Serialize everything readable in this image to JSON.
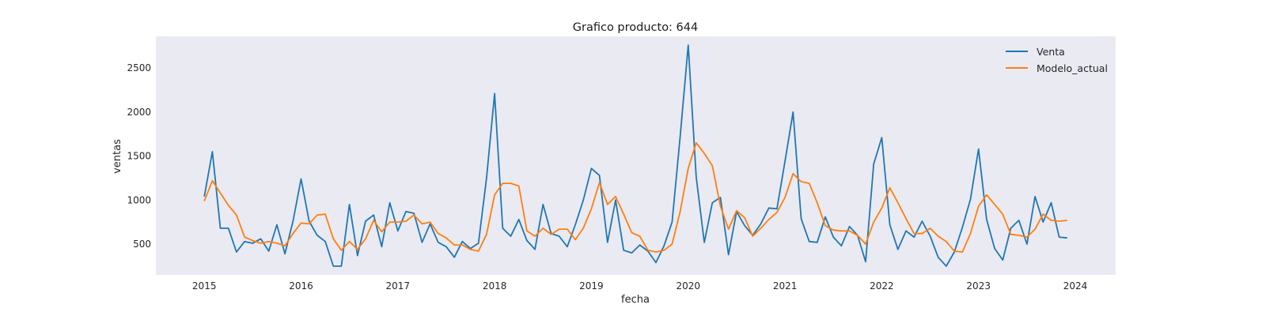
{
  "chart_data": {
    "type": "line",
    "title": "Grafico producto: 644",
    "xlabel": "fecha",
    "ylabel": "ventas",
    "x_start": "2015-01",
    "x_frequency": "monthly",
    "xlim": [
      "2014-07",
      "2024-06"
    ],
    "ylim": [
      150,
      2860
    ],
    "xticks": [
      "2015",
      "2016",
      "2017",
      "2018",
      "2019",
      "2020",
      "2021",
      "2022",
      "2023",
      "2024"
    ],
    "yticks": [
      500,
      1000,
      1500,
      2000,
      2500
    ],
    "grid": false,
    "background": "#eaeaf2",
    "legend": {
      "placement": "top-right",
      "entries": [
        "Venta",
        "Modelo_actual"
      ]
    },
    "series": [
      {
        "name": "Venta",
        "color": "#1f77b4",
        "values": [
          1040,
          1550,
          680,
          680,
          410,
          530,
          510,
          560,
          420,
          720,
          390,
          760,
          1240,
          760,
          600,
          530,
          250,
          250,
          950,
          370,
          760,
          830,
          470,
          970,
          650,
          870,
          850,
          520,
          730,
          520,
          470,
          350,
          530,
          450,
          510,
          1250,
          2210,
          680,
          590,
          780,
          540,
          440,
          950,
          620,
          590,
          470,
          720,
          1000,
          1360,
          1280,
          520,
          1000,
          430,
          400,
          490,
          420,
          290,
          480,
          750,
          1720,
          2760,
          1260,
          520,
          970,
          1030,
          380,
          870,
          710,
          600,
          730,
          910,
          900,
          1440,
          2000,
          790,
          530,
          520,
          810,
          580,
          480,
          700,
          600,
          300,
          1410,
          1710,
          720,
          440,
          650,
          580,
          760,
          590,
          350,
          250,
          410,
          690,
          1010,
          1580,
          780,
          450,
          320,
          680,
          770,
          500,
          1040,
          750,
          970,
          580,
          570
        ]
      },
      {
        "name": "Modelo_actual",
        "color": "#ff7f0e",
        "values": [
          990,
          1220,
          1080,
          940,
          830,
          580,
          540,
          510,
          530,
          510,
          480,
          620,
          740,
          730,
          830,
          840,
          560,
          430,
          530,
          440,
          560,
          770,
          640,
          750,
          750,
          760,
          830,
          730,
          750,
          620,
          570,
          490,
          490,
          440,
          420,
          610,
          1060,
          1190,
          1190,
          1160,
          650,
          590,
          680,
          610,
          670,
          670,
          550,
          680,
          900,
          1200,
          950,
          1040,
          840,
          630,
          590,
          430,
          410,
          430,
          500,
          870,
          1360,
          1650,
          1530,
          1390,
          930,
          670,
          880,
          800,
          590,
          680,
          780,
          860,
          1030,
          1300,
          1210,
          1190,
          970,
          710,
          660,
          650,
          650,
          600,
          500,
          750,
          910,
          1140,
          970,
          790,
          620,
          620,
          680,
          590,
          530,
          420,
          410,
          620,
          930,
          1060,
          950,
          840,
          610,
          600,
          580,
          670,
          840,
          770,
          760,
          770
        ]
      }
    ]
  }
}
